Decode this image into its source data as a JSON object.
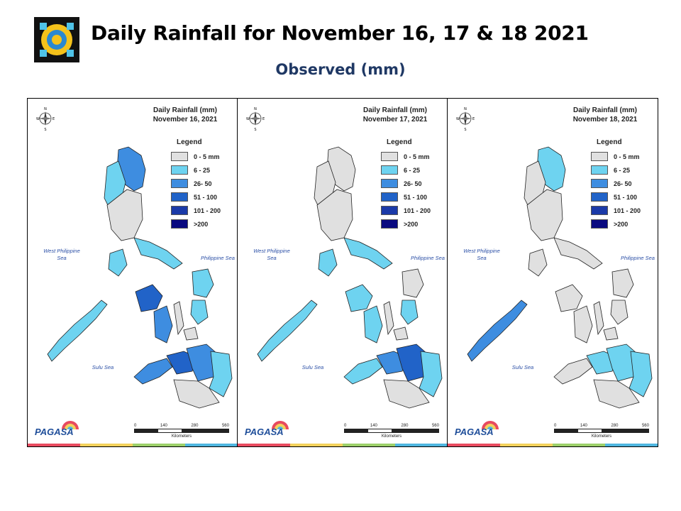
{
  "header": {
    "title": "Daily Rainfall for November 16, 17 & 18  2021",
    "subtitle": "Observed (mm)"
  },
  "legend": {
    "title": "Legend",
    "items": [
      {
        "label": "0 - 5 mm",
        "color": "#e0e0e0"
      },
      {
        "label": "6 - 25",
        "color": "#6ed3f0"
      },
      {
        "label": "26- 50",
        "color": "#3e8de0"
      },
      {
        "label": "51 - 100",
        "color": "#2163c8"
      },
      {
        "label": "101 - 200",
        "color": "#1b3aa8"
      },
      {
        "label": ">200",
        "color": "#0a0a80"
      }
    ]
  },
  "labels": {
    "west_sea": "West Philippine Sea",
    "east_sea": "Philippine Sea",
    "sulu_sea": "Sulu Sea",
    "scale_ticks": [
      "0",
      "140",
      "280",
      "560"
    ],
    "scale_unit": "Kilometers",
    "agency": "PAGASA"
  },
  "panels": [
    {
      "title_line1": "Daily Rainfall (mm)",
      "title_line2": "November 16, 2021",
      "regions": {
        "north": 2,
        "ilocos": 1,
        "central": 0,
        "bicol": 1,
        "mindoro": 1,
        "palawan": 1,
        "panay": 3,
        "negros": 2,
        "samar": 1,
        "leyte": 1,
        "cebu": 0,
        "bohol": 0,
        "zamboanga": 2,
        "misamis": 3,
        "north_mindanao": 2,
        "davao": 1,
        "south_mindanao": 0
      }
    },
    {
      "title_line1": "Daily Rainfall (mm)",
      "title_line2": "November 17, 2021",
      "regions": {
        "north": 0,
        "ilocos": 0,
        "central": 0,
        "bicol": 1,
        "mindoro": 1,
        "palawan": 1,
        "panay": 1,
        "negros": 1,
        "samar": 0,
        "leyte": 1,
        "cebu": 0,
        "bohol": 0,
        "zamboanga": 1,
        "misamis": 2,
        "north_mindanao": 3,
        "davao": 1,
        "south_mindanao": 0
      }
    },
    {
      "title_line1": "Daily Rainfall (mm)",
      "title_line2": "November 18, 2021",
      "regions": {
        "north": 1,
        "ilocos": 0,
        "central": 0,
        "bicol": 0,
        "mindoro": 0,
        "palawan": 2,
        "panay": 0,
        "negros": 0,
        "samar": 0,
        "leyte": 0,
        "cebu": 0,
        "bohol": 0,
        "zamboanga": 0,
        "misamis": 1,
        "north_mindanao": 1,
        "davao": 1,
        "south_mindanao": 0
      }
    }
  ],
  "strip_colors": [
    "#e84a5f",
    "#f3d15c",
    "#9ccf6a",
    "#4fb6e0"
  ]
}
